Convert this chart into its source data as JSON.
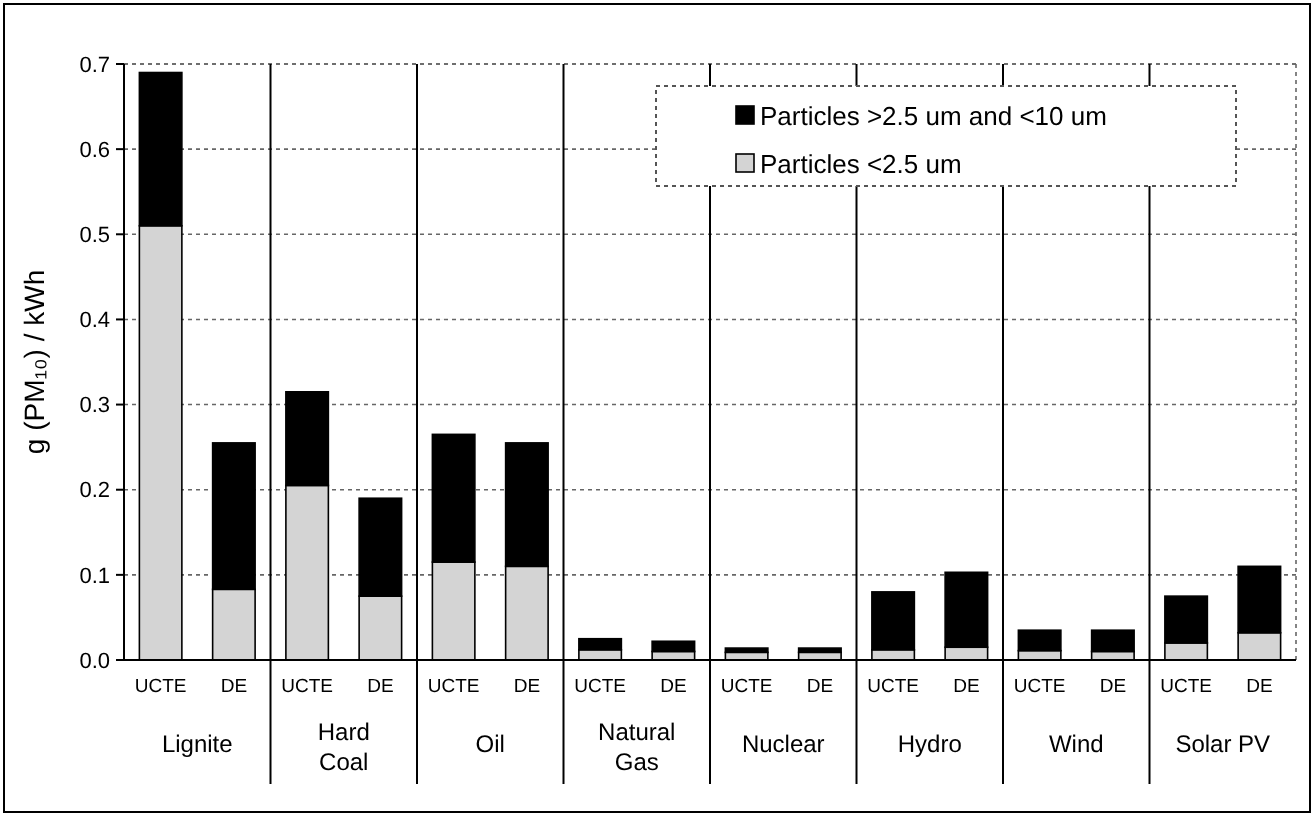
{
  "chart_data": {
    "type": "bar",
    "stacked": true,
    "ylabel": "g (PM₁₀) / kWh",
    "categories": [
      "UCTE",
      "DE",
      "UCTE",
      "DE",
      "UCTE",
      "DE",
      "UCTE",
      "DE",
      "UCTE",
      "DE",
      "UCTE",
      "DE",
      "UCTE",
      "DE",
      "UCTE",
      "DE"
    ],
    "annotations": [
      "Lignite",
      "Hard Coal",
      "Oil",
      "Natural Gas",
      "Nuclear",
      "Hydro",
      "Wind",
      "Solar PV"
    ],
    "series": [
      {
        "name": "Particles <2.5 um",
        "color": "#d4d4d4",
        "values": [
          0.51,
          0.083,
          0.205,
          0.075,
          0.115,
          0.11,
          0.012,
          0.01,
          0.009,
          0.009,
          0.012,
          0.015,
          0.011,
          0.01,
          0.02,
          0.032
        ]
      },
      {
        "name": "Particles >2.5 um and <10 um",
        "color": "#000000",
        "values": [
          0.18,
          0.172,
          0.11,
          0.115,
          0.15,
          0.145,
          0.013,
          0.012,
          0.005,
          0.005,
          0.068,
          0.088,
          0.024,
          0.025,
          0.055,
          0.078
        ]
      }
    ],
    "ylim": [
      0,
      0.7
    ],
    "yticks": [
      {
        "value": 0,
        "label": "0.0"
      },
      0.1,
      0.2,
      0.3,
      0.4,
      0.5,
      0.6,
      0.7
    ],
    "grid": "y",
    "legend": "top right"
  }
}
